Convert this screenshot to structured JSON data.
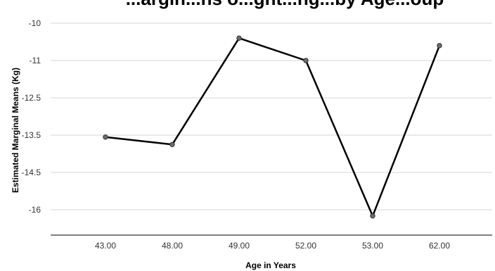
{
  "chart_data": {
    "type": "line",
    "title": "...argin...ns o...ght...ng...by Age...oup",
    "xlabel": "Age in Years",
    "ylabel": "Estimated Marginal Means (Kg)",
    "categories": [
      "43.00",
      "48.00",
      "49.00",
      "52.00",
      "53.00",
      "62.00"
    ],
    "values": [
      -13.55,
      -13.75,
      -10.4,
      -11.0,
      -16.25,
      -10.6
    ],
    "y_tick_labels": [
      "-10",
      "-11",
      "-12.5",
      "-13.5",
      "-14.5",
      "-16"
    ],
    "ylim": [
      -16.4,
      -9.6
    ],
    "grid": true,
    "legend": "none",
    "colors": {
      "line": "#000000",
      "marker": "#6b6b6b",
      "grid": "#d4d4d4"
    }
  }
}
